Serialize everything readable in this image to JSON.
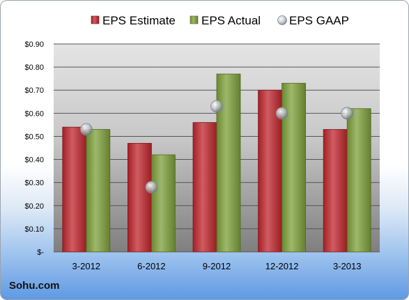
{
  "chart_data": {
    "type": "bar",
    "categories": [
      "3-2012",
      "6-2012",
      "9-2012",
      "12-2012",
      "3-2013"
    ],
    "series": [
      {
        "name": "EPS Estimate",
        "kind": "bar",
        "color": "#c0262c",
        "values": [
          0.54,
          0.47,
          0.56,
          0.7,
          0.53
        ]
      },
      {
        "name": "EPS Actual",
        "kind": "bar",
        "color": "#7ea03a",
        "values": [
          0.53,
          0.42,
          0.77,
          0.73,
          0.62
        ]
      },
      {
        "name": "EPS GAAP",
        "kind": "marker",
        "color": "#b9bfc6",
        "values": [
          0.53,
          0.28,
          0.63,
          0.6,
          0.6
        ]
      }
    ],
    "ylim": [
      0,
      0.9
    ],
    "yticks": [
      0,
      0.1,
      0.2,
      0.3,
      0.4,
      0.5,
      0.6,
      0.7,
      0.8,
      0.9
    ],
    "ytick_labels": [
      "$-",
      "$0.10",
      "$0.20",
      "$0.30",
      "$0.40",
      "$0.50",
      "$0.60",
      "$0.70",
      "$0.80",
      "$0.90"
    ],
    "grid": true,
    "legend_position": "top"
  },
  "source_label": "Sohu.com"
}
